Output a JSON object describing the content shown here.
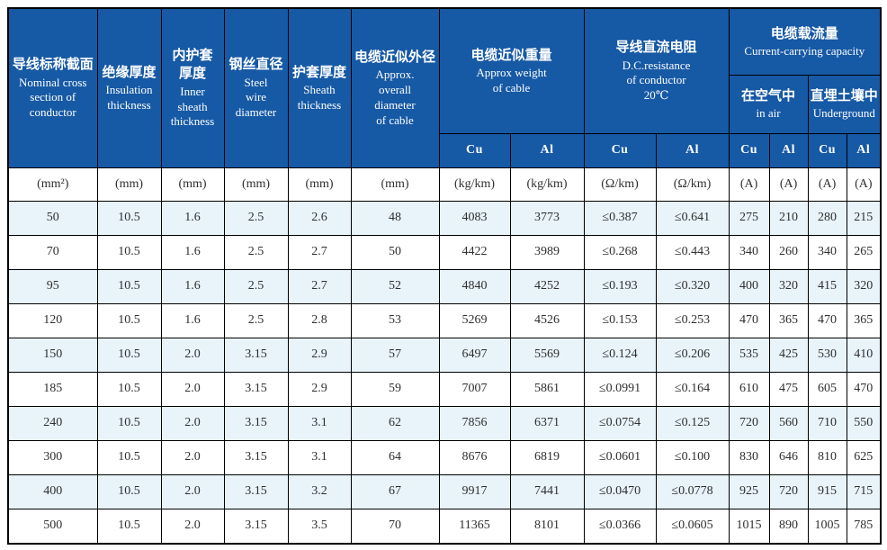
{
  "colors": {
    "header_bg": "#1659a5",
    "header_text": "#ffffff",
    "alt_row_bg": "#e8f3fa",
    "border": "#000000",
    "body_text": "#2f2f2f"
  },
  "table": {
    "columns": [
      {
        "zh": "导线标称截面",
        "en": "Nominal cross\nsection of\nconductor"
      },
      {
        "zh": "绝缘厚度",
        "en": "Insulation\nthickness"
      },
      {
        "zh": "内护套\n厚度",
        "en": "Inner\nsheath\nthickness"
      },
      {
        "zh": "钢丝直径",
        "en": "Steel\nwire\ndiameter"
      },
      {
        "zh": "护套厚度",
        "en": "Sheath\nthickness"
      },
      {
        "zh": "电缆近似外径",
        "en": "Approx.\noverall\ndiameter\nof cable"
      }
    ],
    "groups": {
      "weight": {
        "zh": "电缆近似重量",
        "en": "Approx weight\nof cable"
      },
      "resistance": {
        "zh": "导线直流电阻",
        "en": "D.C.resistance\nof conductor\n20℃"
      },
      "capacity": {
        "zh": "电缆载流量",
        "en": "Current-carrying capacity"
      },
      "in_air": {
        "zh": "在空气中",
        "en": "in air"
      },
      "underground": {
        "zh": "直埋土壤中",
        "en": "Underground"
      }
    },
    "metal_labels": [
      "Cu",
      "Al",
      "Cu",
      "Al",
      "Cu",
      "Al",
      "Cu",
      "Al"
    ],
    "units": [
      "(mm²)",
      "(mm)",
      "(mm)",
      "(mm)",
      "(mm)",
      "(mm)",
      "(kg/km)",
      "(kg/km)",
      "(Ω/km)",
      "(Ω/km)",
      "(A)",
      "(A)",
      "(A)",
      "(A)"
    ],
    "rows": [
      [
        "50",
        "10.5",
        "1.6",
        "2.5",
        "2.6",
        "48",
        "4083",
        "3773",
        "≤0.387",
        "≤0.641",
        "275",
        "210",
        "280",
        "215"
      ],
      [
        "70",
        "10.5",
        "1.6",
        "2.5",
        "2.7",
        "50",
        "4422",
        "3989",
        "≤0.268",
        "≤0.443",
        "340",
        "260",
        "340",
        "265"
      ],
      [
        "95",
        "10.5",
        "1.6",
        "2.5",
        "2.7",
        "52",
        "4840",
        "4252",
        "≤0.193",
        "≤0.320",
        "400",
        "320",
        "415",
        "320"
      ],
      [
        "120",
        "10.5",
        "1.6",
        "2.5",
        "2.8",
        "53",
        "5269",
        "4526",
        "≤0.153",
        "≤0.253",
        "470",
        "365",
        "470",
        "365"
      ],
      [
        "150",
        "10.5",
        "2.0",
        "3.15",
        "2.9",
        "57",
        "6497",
        "5569",
        "≤0.124",
        "≤0.206",
        "535",
        "425",
        "530",
        "410"
      ],
      [
        "185",
        "10.5",
        "2.0",
        "3.15",
        "2.9",
        "59",
        "7007",
        "5861",
        "≤0.0991",
        "≤0.164",
        "610",
        "475",
        "605",
        "470"
      ],
      [
        "240",
        "10.5",
        "2.0",
        "3.15",
        "3.1",
        "62",
        "7856",
        "6371",
        "≤0.0754",
        "≤0.125",
        "720",
        "560",
        "710",
        "550"
      ],
      [
        "300",
        "10.5",
        "2.0",
        "3.15",
        "3.1",
        "64",
        "8676",
        "6819",
        "≤0.0601",
        "≤0.100",
        "830",
        "646",
        "810",
        "625"
      ],
      [
        "400",
        "10.5",
        "2.0",
        "3.15",
        "3.2",
        "67",
        "9917",
        "7441",
        "≤0.0470",
        "≤0.0778",
        "925",
        "720",
        "915",
        "715"
      ],
      [
        "500",
        "10.5",
        "2.0",
        "3.15",
        "3.5",
        "70",
        "11365",
        "8101",
        "≤0.0366",
        "≤0.0605",
        "1015",
        "890",
        "1005",
        "785"
      ]
    ]
  }
}
